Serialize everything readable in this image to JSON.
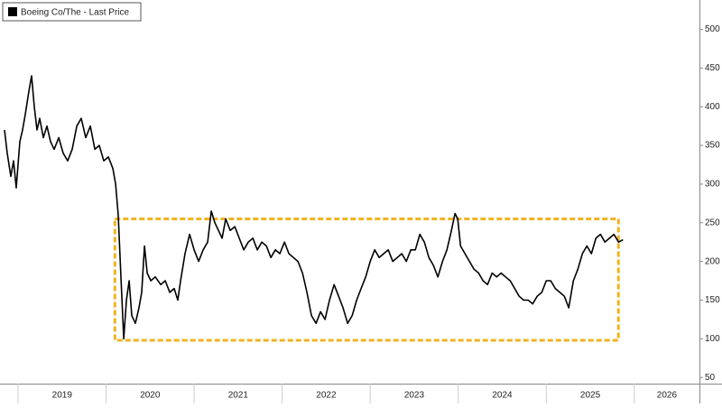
{
  "chart_data": {
    "type": "line",
    "series": [
      {
        "name": "Boeing Co/The - Last Price",
        "color": "#000000",
        "x": [
          2018.846,
          2018.877,
          2018.918,
          2018.949,
          2018.98,
          2019.021,
          2019.051,
          2019.082,
          2019.123,
          2019.154,
          2019.185,
          2019.215,
          2019.246,
          2019.287,
          2019.328,
          2019.369,
          2019.41,
          2019.462,
          2019.513,
          2019.564,
          2019.615,
          2019.667,
          2019.718,
          2019.769,
          2019.821,
          2019.872,
          2019.923,
          2019.974,
          2020.026,
          2020.077,
          2020.108,
          2020.138,
          2020.169,
          2020.2,
          2020.231,
          2020.262,
          2020.292,
          2020.333,
          2020.374,
          2020.405,
          2020.436,
          2020.467,
          2020.508,
          2020.559,
          2020.621,
          2020.672,
          2020.723,
          2020.774,
          2020.815,
          2020.846,
          2020.897,
          2020.949,
          2021.0,
          2021.051,
          2021.103,
          2021.154,
          2021.195,
          2021.236,
          2021.277,
          2021.318,
          2021.359,
          2021.41,
          2021.462,
          2021.513,
          2021.564,
          2021.615,
          2021.667,
          2021.718,
          2021.769,
          2021.821,
          2021.872,
          2021.923,
          2021.974,
          2022.026,
          2022.077,
          2022.128,
          2022.179,
          2022.231,
          2022.282,
          2022.333,
          2022.385,
          2022.436,
          2022.487,
          2022.538,
          2022.59,
          2022.641,
          2022.692,
          2022.744,
          2022.795,
          2022.846,
          2022.897,
          2022.949,
          2023.0,
          2023.051,
          2023.103,
          2023.154,
          2023.205,
          2023.256,
          2023.308,
          2023.359,
          2023.41,
          2023.462,
          2023.513,
          2023.564,
          2023.615,
          2023.667,
          2023.718,
          2023.769,
          2023.821,
          2023.872,
          2023.923,
          2023.964,
          2023.995,
          2024.026,
          2024.077,
          2024.128,
          2024.179,
          2024.231,
          2024.282,
          2024.333,
          2024.385,
          2024.436,
          2024.487,
          2024.538,
          2024.59,
          2024.641,
          2024.692,
          2024.744,
          2024.795,
          2024.846,
          2024.897,
          2024.949,
          2025.0,
          2025.051,
          2025.103,
          2025.154,
          2025.205,
          2025.256,
          2025.308,
          2025.359,
          2025.41,
          2025.462,
          2025.513,
          2025.564,
          2025.615,
          2025.667,
          2025.718,
          2025.769,
          2025.821,
          2025.872
        ],
        "values": [
          370,
          340,
          310,
          330,
          295,
          355,
          370,
          390,
          420,
          440,
          400,
          370,
          385,
          360,
          375,
          355,
          345,
          360,
          340,
          330,
          345,
          375,
          385,
          360,
          375,
          345,
          350,
          330,
          335,
          320,
          300,
          260,
          180,
          100,
          150,
          175,
          130,
          120,
          140,
          160,
          220,
          185,
          175,
          180,
          170,
          175,
          160,
          165,
          150,
          175,
          210,
          235,
          215,
          200,
          215,
          225,
          265,
          250,
          240,
          230,
          255,
          240,
          245,
          230,
          215,
          225,
          230,
          215,
          225,
          220,
          205,
          215,
          210,
          225,
          210,
          205,
          200,
          185,
          160,
          130,
          120,
          135,
          125,
          150,
          170,
          155,
          140,
          120,
          130,
          150,
          165,
          180,
          200,
          215,
          205,
          210,
          215,
          200,
          205,
          210,
          200,
          215,
          215,
          235,
          225,
          205,
          195,
          180,
          200,
          215,
          240,
          262,
          255,
          220,
          210,
          200,
          190,
          185,
          175,
          170,
          185,
          180,
          185,
          180,
          175,
          165,
          155,
          150,
          150,
          145,
          155,
          160,
          175,
          175,
          165,
          160,
          155,
          140,
          175,
          190,
          210,
          220,
          210,
          230,
          235,
          225,
          230,
          235,
          225,
          228
        ]
      }
    ],
    "xlim": [
      2018.795,
      2026.74
    ],
    "xticks": [
      2019,
      2020,
      2021,
      2022,
      2023,
      2024,
      2025,
      2026
    ],
    "ylim": [
      42,
      538
    ],
    "yticks": [
      50,
      100,
      150,
      200,
      250,
      300,
      350,
      400,
      450,
      500
    ],
    "grid": false,
    "legend": "top-left",
    "highlight_box": {
      "xlim": [
        2020.1,
        2025.82
      ],
      "ylim": [
        98,
        255
      ],
      "color": "#f0b323"
    }
  }
}
